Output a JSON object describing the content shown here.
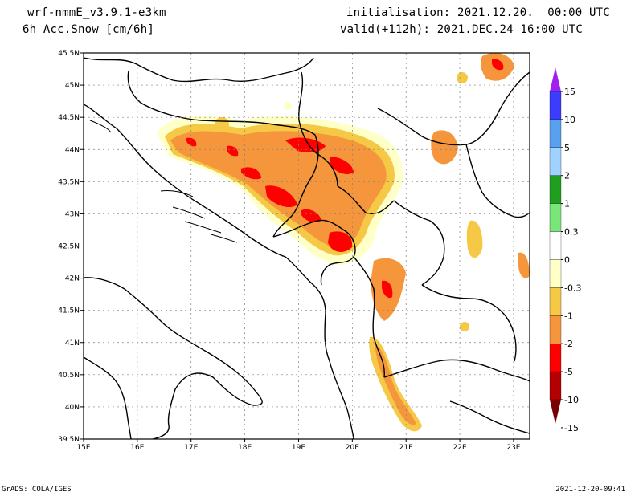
{
  "header": {
    "model": "wrf-nmmE_v3.9.1-e3km",
    "field": "6h Acc.Snow [cm/6h]",
    "init": "initialisation: 2021.12.20.  00:00 UTC",
    "valid": "valid(+112h): 2021.DEC.24 16:00 UTC"
  },
  "axes": {
    "lat_ticks": [
      "45.5N",
      "45N",
      "44.5N",
      "44N",
      "43.5N",
      "43N",
      "42.5N",
      "42N",
      "41.5N",
      "41N",
      "40.5N",
      "40N",
      "39.5N"
    ],
    "lon_ticks": [
      "15E",
      "16E",
      "17E",
      "18E",
      "19E",
      "20E",
      "21E",
      "22E",
      "23E"
    ],
    "lat_range": [
      39.5,
      45.5
    ],
    "lon_range": [
      15,
      23.3
    ],
    "grid": true
  },
  "colorbar": {
    "levels": [
      "15",
      "10",
      "5",
      "2",
      "1",
      "0.3",
      "0",
      "-0.3",
      "-1",
      "-2",
      "-5",
      "-10",
      "-15"
    ],
    "colors": [
      "#a020f0",
      "#3c3cff",
      "#5aa0f0",
      "#a0d2ff",
      "#1ea01e",
      "#78e678",
      "#ffffff",
      "#ffffc8",
      "#f5c846",
      "#f5963c",
      "#ff0000",
      "#b40000",
      "#780000"
    ]
  },
  "footer": {
    "left": "GrADS: COLA/IGES",
    "right": "2021-12-20-09:41"
  }
}
